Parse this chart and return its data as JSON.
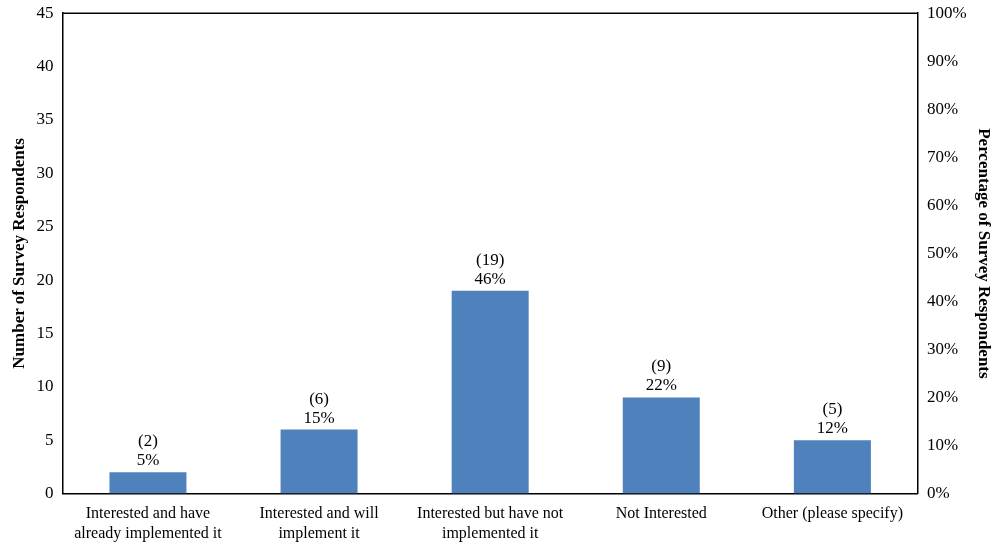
{
  "chart_data": {
    "type": "bar",
    "categories": [
      "Interested and have already implemented it",
      "Interested and will implement it",
      "Interested but have not implemented it",
      "Not Interested",
      "Other (please specify)"
    ],
    "series": [
      {
        "color": "#4f81bd",
        "values": [
          2,
          6,
          19,
          9,
          5
        ],
        "value_labels": [
          "(2)\n5%",
          "(6)\n15%",
          "(19)\n46%",
          "(9)\n22%",
          "(5)\n12%"
        ]
      }
    ],
    "ylabel": "Number of Survey Respondents",
    "y2label": "Percentage of Survey Respondents",
    "ylim": [
      0,
      45
    ],
    "yticks": [
      0,
      5,
      10,
      15,
      20,
      25,
      30,
      35,
      40,
      45
    ],
    "y2lim": [
      0,
      100
    ],
    "y2ticks": [
      {
        "value": 0,
        "label": "0%"
      },
      {
        "value": 10,
        "label": "10%"
      },
      {
        "value": 20,
        "label": "20%"
      },
      {
        "value": 30,
        "label": "30%"
      },
      {
        "value": 40,
        "label": "40%"
      },
      {
        "value": 50,
        "label": "50%"
      },
      {
        "value": 60,
        "label": "60%"
      },
      {
        "value": 70,
        "label": "70%"
      },
      {
        "value": 80,
        "label": "80%"
      },
      {
        "value": 90,
        "label": "90%"
      },
      {
        "value": 100,
        "label": "100%"
      }
    ],
    "grid": false,
    "legend": false
  }
}
